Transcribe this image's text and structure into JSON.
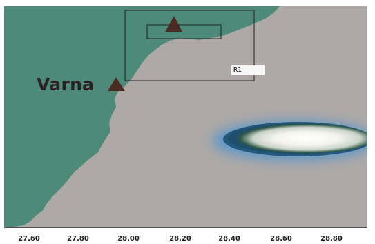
{
  "map": {
    "city": {
      "name": "Varna"
    },
    "regions": [
      {
        "label": "R1"
      }
    ],
    "x_axis": {
      "ticks": [
        "27.60",
        "27.80",
        "28.00",
        "28.20",
        "28.40",
        "28.60",
        "28.80"
      ]
    },
    "colors": {
      "land": "#4e8a79",
      "sea": "#aea9a7",
      "plume_core": "#f8f6f2",
      "plume_mid": "#2e5a4a",
      "plume_halo": "#3f93d8",
      "marker": "#4a2a22"
    }
  }
}
